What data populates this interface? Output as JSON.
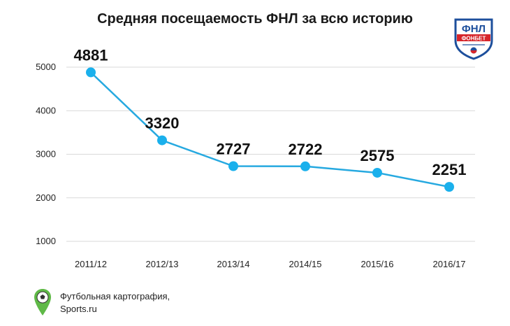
{
  "page": {
    "title": "Средняя посещаемость ФНЛ за всю историю",
    "logo_text_top": "ФНЛ",
    "logo_text_band": "ФОНБЕТ",
    "footer_line1": "Футбольная картография,",
    "footer_line2": "Sports.ru"
  },
  "colors": {
    "line": "#26a9e0",
    "marker": "#1ab0ec",
    "grid": "#d9d9d9",
    "logo_blue": "#1d4f9c",
    "logo_red": "#d6252b",
    "pin_green": "#5fb947"
  },
  "chart_data": {
    "type": "line",
    "title": "Средняя посещаемость ФНЛ за всю историю",
    "categories": [
      "2011/12",
      "2012/13",
      "2013/14",
      "2014/15",
      "2015/16",
      "2016/17"
    ],
    "series": [
      {
        "values": [
          4881,
          3320,
          2727,
          2722,
          2575,
          2251
        ]
      }
    ],
    "value_labels": [
      "4881",
      "3320",
      "2727",
      "2722",
      "2575",
      "2251"
    ],
    "yticks": [
      1000,
      2000,
      3000,
      4000,
      5000
    ],
    "ylim": [
      1000,
      5000
    ],
    "grid": true,
    "xlabel": "",
    "ylabel": ""
  }
}
